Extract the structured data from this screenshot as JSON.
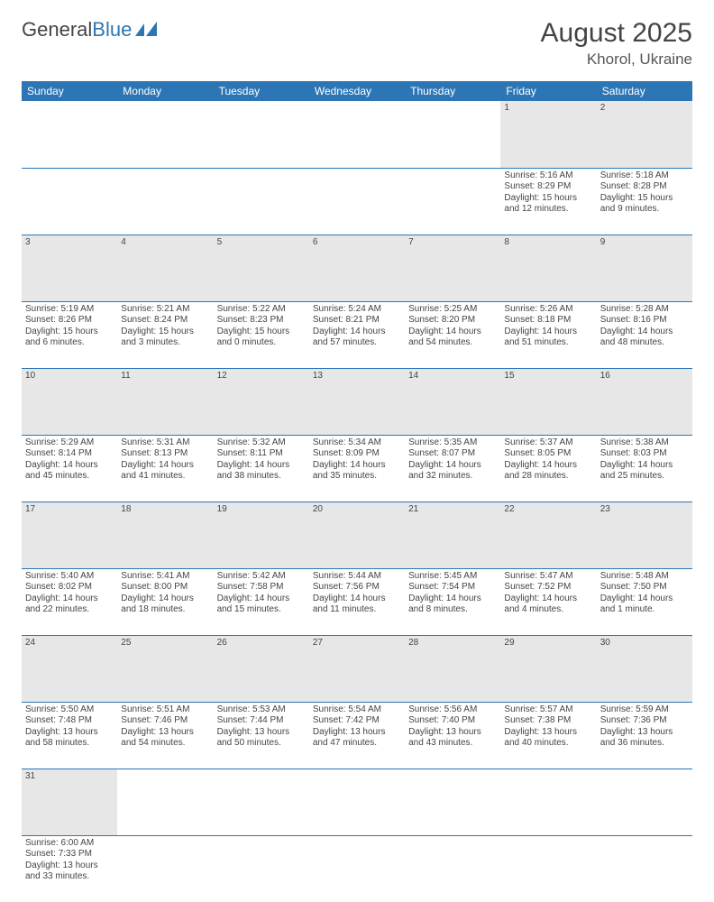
{
  "logo": {
    "text_dark": "General",
    "text_blue": "Blue"
  },
  "header": {
    "month_title": "August 2025",
    "location": "Khorol, Ukraine"
  },
  "colors": {
    "header_bg": "#2d76b5",
    "daynum_bg": "#e7e7e7",
    "row_border": "#2d76b5",
    "text": "#444444"
  },
  "day_names": [
    "Sunday",
    "Monday",
    "Tuesday",
    "Wednesday",
    "Thursday",
    "Friday",
    "Saturday"
  ],
  "weeks": [
    {
      "nums": [
        "",
        "",
        "",
        "",
        "",
        "1",
        "2"
      ],
      "cells": [
        null,
        null,
        null,
        null,
        null,
        {
          "sunrise": "Sunrise: 5:16 AM",
          "sunset": "Sunset: 8:29 PM",
          "day1": "Daylight: 15 hours",
          "day2": "and 12 minutes."
        },
        {
          "sunrise": "Sunrise: 5:18 AM",
          "sunset": "Sunset: 8:28 PM",
          "day1": "Daylight: 15 hours",
          "day2": "and 9 minutes."
        }
      ]
    },
    {
      "nums": [
        "3",
        "4",
        "5",
        "6",
        "7",
        "8",
        "9"
      ],
      "cells": [
        {
          "sunrise": "Sunrise: 5:19 AM",
          "sunset": "Sunset: 8:26 PM",
          "day1": "Daylight: 15 hours",
          "day2": "and 6 minutes."
        },
        {
          "sunrise": "Sunrise: 5:21 AM",
          "sunset": "Sunset: 8:24 PM",
          "day1": "Daylight: 15 hours",
          "day2": "and 3 minutes."
        },
        {
          "sunrise": "Sunrise: 5:22 AM",
          "sunset": "Sunset: 8:23 PM",
          "day1": "Daylight: 15 hours",
          "day2": "and 0 minutes."
        },
        {
          "sunrise": "Sunrise: 5:24 AM",
          "sunset": "Sunset: 8:21 PM",
          "day1": "Daylight: 14 hours",
          "day2": "and 57 minutes."
        },
        {
          "sunrise": "Sunrise: 5:25 AM",
          "sunset": "Sunset: 8:20 PM",
          "day1": "Daylight: 14 hours",
          "day2": "and 54 minutes."
        },
        {
          "sunrise": "Sunrise: 5:26 AM",
          "sunset": "Sunset: 8:18 PM",
          "day1": "Daylight: 14 hours",
          "day2": "and 51 minutes."
        },
        {
          "sunrise": "Sunrise: 5:28 AM",
          "sunset": "Sunset: 8:16 PM",
          "day1": "Daylight: 14 hours",
          "day2": "and 48 minutes."
        }
      ]
    },
    {
      "nums": [
        "10",
        "11",
        "12",
        "13",
        "14",
        "15",
        "16"
      ],
      "cells": [
        {
          "sunrise": "Sunrise: 5:29 AM",
          "sunset": "Sunset: 8:14 PM",
          "day1": "Daylight: 14 hours",
          "day2": "and 45 minutes."
        },
        {
          "sunrise": "Sunrise: 5:31 AM",
          "sunset": "Sunset: 8:13 PM",
          "day1": "Daylight: 14 hours",
          "day2": "and 41 minutes."
        },
        {
          "sunrise": "Sunrise: 5:32 AM",
          "sunset": "Sunset: 8:11 PM",
          "day1": "Daylight: 14 hours",
          "day2": "and 38 minutes."
        },
        {
          "sunrise": "Sunrise: 5:34 AM",
          "sunset": "Sunset: 8:09 PM",
          "day1": "Daylight: 14 hours",
          "day2": "and 35 minutes."
        },
        {
          "sunrise": "Sunrise: 5:35 AM",
          "sunset": "Sunset: 8:07 PM",
          "day1": "Daylight: 14 hours",
          "day2": "and 32 minutes."
        },
        {
          "sunrise": "Sunrise: 5:37 AM",
          "sunset": "Sunset: 8:05 PM",
          "day1": "Daylight: 14 hours",
          "day2": "and 28 minutes."
        },
        {
          "sunrise": "Sunrise: 5:38 AM",
          "sunset": "Sunset: 8:03 PM",
          "day1": "Daylight: 14 hours",
          "day2": "and 25 minutes."
        }
      ]
    },
    {
      "nums": [
        "17",
        "18",
        "19",
        "20",
        "21",
        "22",
        "23"
      ],
      "cells": [
        {
          "sunrise": "Sunrise: 5:40 AM",
          "sunset": "Sunset: 8:02 PM",
          "day1": "Daylight: 14 hours",
          "day2": "and 22 minutes."
        },
        {
          "sunrise": "Sunrise: 5:41 AM",
          "sunset": "Sunset: 8:00 PM",
          "day1": "Daylight: 14 hours",
          "day2": "and 18 minutes."
        },
        {
          "sunrise": "Sunrise: 5:42 AM",
          "sunset": "Sunset: 7:58 PM",
          "day1": "Daylight: 14 hours",
          "day2": "and 15 minutes."
        },
        {
          "sunrise": "Sunrise: 5:44 AM",
          "sunset": "Sunset: 7:56 PM",
          "day1": "Daylight: 14 hours",
          "day2": "and 11 minutes."
        },
        {
          "sunrise": "Sunrise: 5:45 AM",
          "sunset": "Sunset: 7:54 PM",
          "day1": "Daylight: 14 hours",
          "day2": "and 8 minutes."
        },
        {
          "sunrise": "Sunrise: 5:47 AM",
          "sunset": "Sunset: 7:52 PM",
          "day1": "Daylight: 14 hours",
          "day2": "and 4 minutes."
        },
        {
          "sunrise": "Sunrise: 5:48 AM",
          "sunset": "Sunset: 7:50 PM",
          "day1": "Daylight: 14 hours",
          "day2": "and 1 minute."
        }
      ]
    },
    {
      "nums": [
        "24",
        "25",
        "26",
        "27",
        "28",
        "29",
        "30"
      ],
      "cells": [
        {
          "sunrise": "Sunrise: 5:50 AM",
          "sunset": "Sunset: 7:48 PM",
          "day1": "Daylight: 13 hours",
          "day2": "and 58 minutes."
        },
        {
          "sunrise": "Sunrise: 5:51 AM",
          "sunset": "Sunset: 7:46 PM",
          "day1": "Daylight: 13 hours",
          "day2": "and 54 minutes."
        },
        {
          "sunrise": "Sunrise: 5:53 AM",
          "sunset": "Sunset: 7:44 PM",
          "day1": "Daylight: 13 hours",
          "day2": "and 50 minutes."
        },
        {
          "sunrise": "Sunrise: 5:54 AM",
          "sunset": "Sunset: 7:42 PM",
          "day1": "Daylight: 13 hours",
          "day2": "and 47 minutes."
        },
        {
          "sunrise": "Sunrise: 5:56 AM",
          "sunset": "Sunset: 7:40 PM",
          "day1": "Daylight: 13 hours",
          "day2": "and 43 minutes."
        },
        {
          "sunrise": "Sunrise: 5:57 AM",
          "sunset": "Sunset: 7:38 PM",
          "day1": "Daylight: 13 hours",
          "day2": "and 40 minutes."
        },
        {
          "sunrise": "Sunrise: 5:59 AM",
          "sunset": "Sunset: 7:36 PM",
          "day1": "Daylight: 13 hours",
          "day2": "and 36 minutes."
        }
      ]
    },
    {
      "nums": [
        "31",
        "",
        "",
        "",
        "",
        "",
        ""
      ],
      "cells": [
        {
          "sunrise": "Sunrise: 6:00 AM",
          "sunset": "Sunset: 7:33 PM",
          "day1": "Daylight: 13 hours",
          "day2": "and 33 minutes."
        },
        null,
        null,
        null,
        null,
        null,
        null
      ]
    }
  ]
}
